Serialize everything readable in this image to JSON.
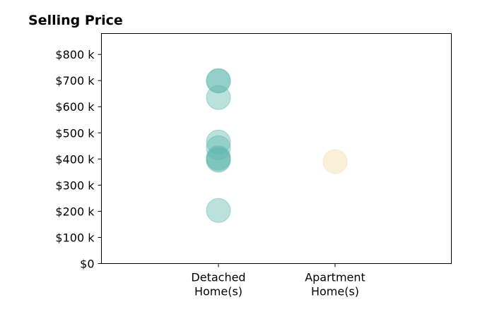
{
  "chart_data": {
    "type": "scatter",
    "title": "Selling Price",
    "xlabel": "",
    "ylabel": "",
    "categories": [
      [
        "Detached",
        "Home(s)"
      ],
      [
        "Apartment",
        "Home(s)"
      ]
    ],
    "ylim": [
      0,
      880000
    ],
    "yticks": [
      0,
      100000,
      200000,
      300000,
      400000,
      500000,
      600000,
      700000,
      800000
    ],
    "ytick_labels": [
      "$0",
      "$100 k",
      "$200 k",
      "$300 k",
      "$400 k",
      "$500 k",
      "$600 k",
      "$700 k",
      "$800 k"
    ],
    "grid": false,
    "series": [
      {
        "category_index": 0,
        "color": "#5fb8ae",
        "values": [
          700000,
          698000,
          635000,
          465000,
          443000,
          405000,
          400000,
          395000,
          203000
        ]
      },
      {
        "category_index": 1,
        "color": "#f3dba6",
        "values": [
          390000
        ]
      }
    ]
  }
}
